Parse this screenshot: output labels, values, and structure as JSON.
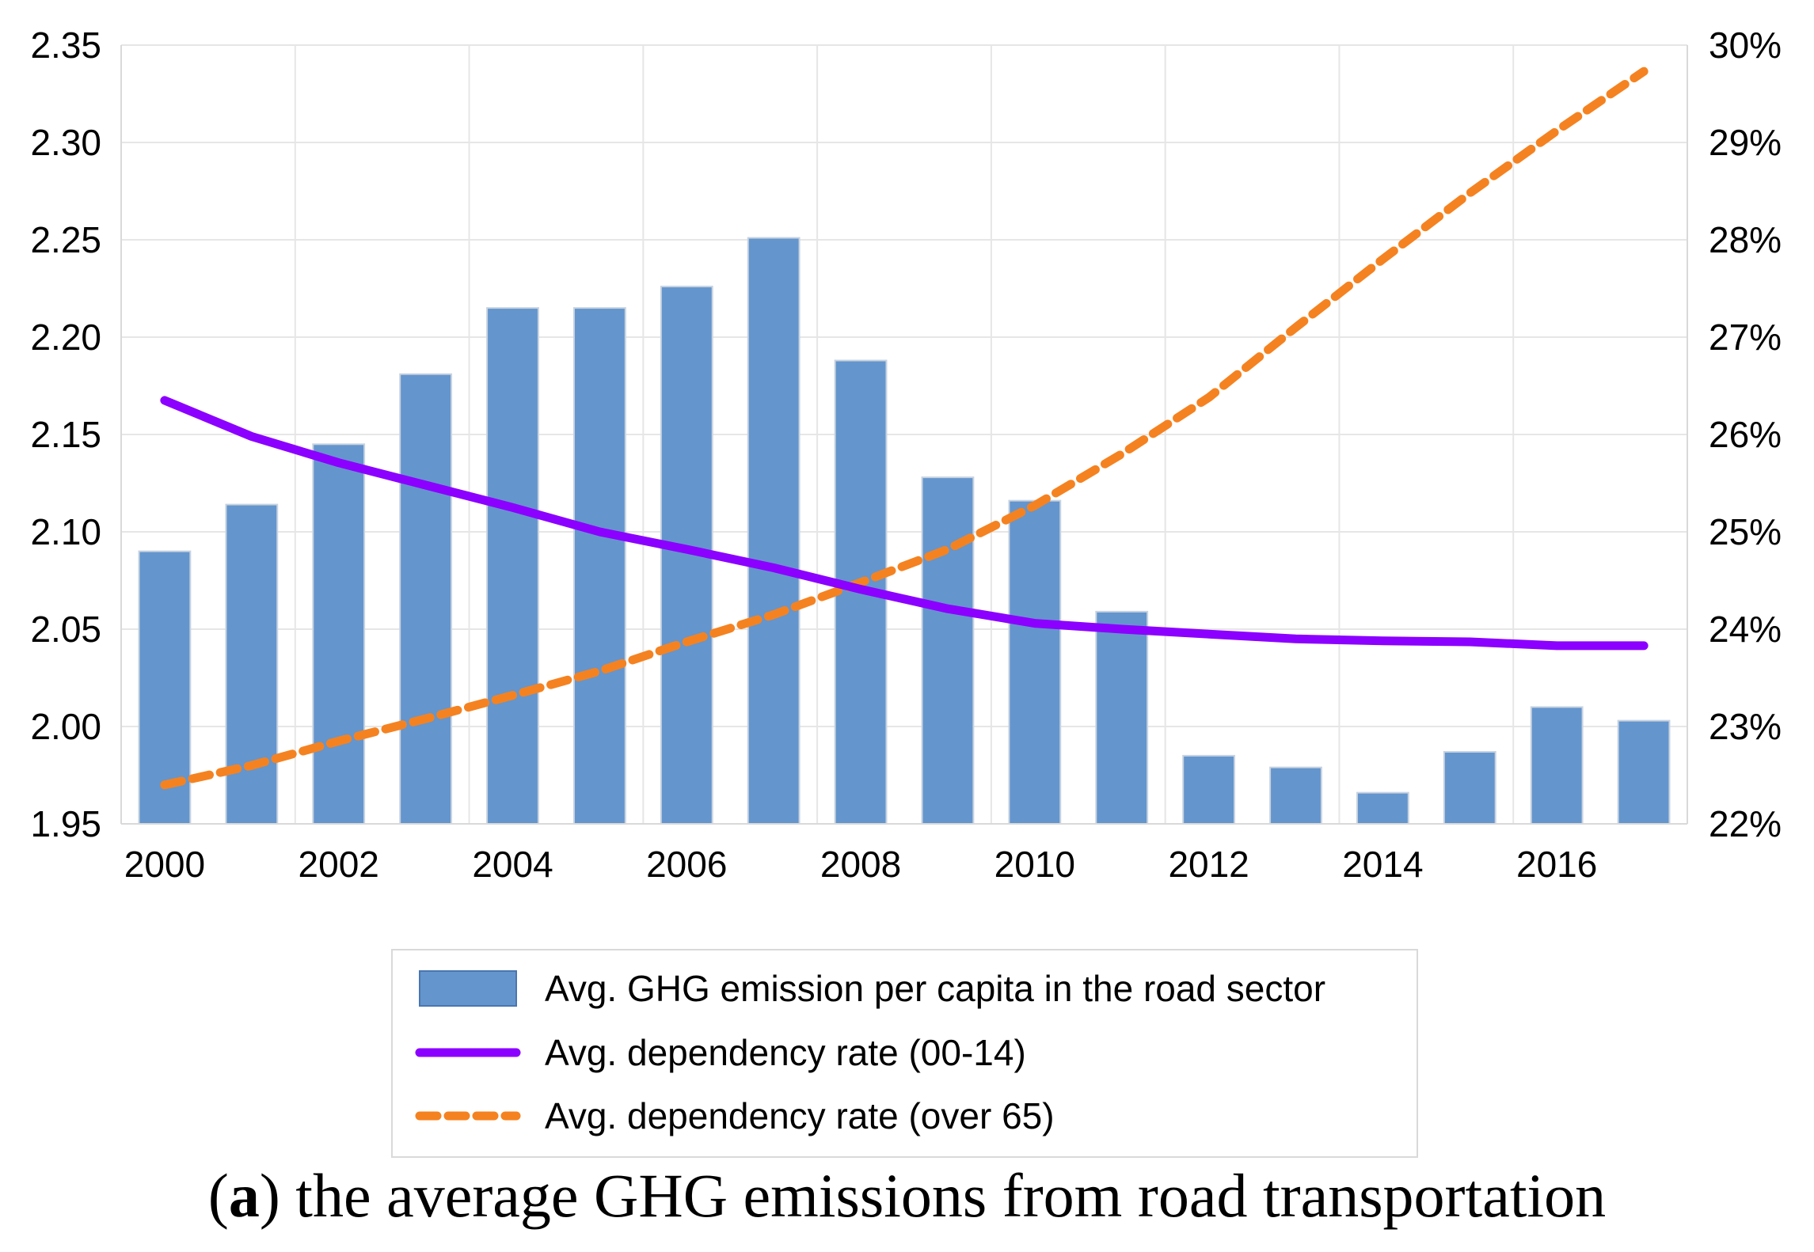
{
  "chart_data": {
    "type": "bar",
    "title": "",
    "xlabel": "",
    "ylabel": "",
    "x": [
      2000,
      2001,
      2002,
      2003,
      2004,
      2005,
      2006,
      2007,
      2008,
      2009,
      2010,
      2011,
      2012,
      2013,
      2014,
      2015,
      2016,
      2017
    ],
    "x_tick_labels": [
      "2000",
      "2002",
      "2004",
      "2006",
      "2008",
      "2010",
      "2012",
      "2014",
      "2016"
    ],
    "x_tick_values": [
      2000,
      2002,
      2004,
      2006,
      2008,
      2010,
      2012,
      2014,
      2016
    ],
    "ylim": [
      1.95,
      2.35
    ],
    "y_tick_labels": [
      "1.95",
      "2.00",
      "2.05",
      "2.10",
      "2.15",
      "2.20",
      "2.25",
      "2.30",
      "2.35"
    ],
    "y_tick_values": [
      1.95,
      2.0,
      2.05,
      2.1,
      2.15,
      2.2,
      2.25,
      2.3,
      2.35
    ],
    "y2lim": [
      22,
      30
    ],
    "y2_tick_labels": [
      "22%",
      "23%",
      "24%",
      "25%",
      "26%",
      "27%",
      "28%",
      "29%",
      "30%"
    ],
    "y2_tick_values": [
      22,
      23,
      24,
      25,
      26,
      27,
      28,
      29,
      30
    ],
    "grid": true,
    "legend_position": "bottom",
    "series": [
      {
        "name": "Avg. GHG emission per capita in the road sector",
        "kind": "bar",
        "axis": "left",
        "color": "#6495CD",
        "values": [
          2.09,
          2.114,
          2.145,
          2.181,
          2.215,
          2.215,
          2.226,
          2.251,
          2.188,
          2.128,
          2.116,
          2.059,
          1.985,
          1.979,
          1.966,
          1.987,
          2.01,
          2.003
        ]
      },
      {
        "name": "Avg. dependency rate (00-14)",
        "kind": "line",
        "axis": "right",
        "color": "#8B00FF",
        "dash": "solid",
        "values": [
          26.35,
          25.98,
          25.71,
          25.48,
          25.25,
          25.0,
          24.82,
          24.63,
          24.41,
          24.21,
          24.06,
          24.0,
          23.95,
          23.9,
          23.88,
          23.87,
          23.83,
          23.83
        ]
      },
      {
        "name": "Avg. dependency rate (over 65)",
        "kind": "line",
        "axis": "right",
        "color": "#F58220",
        "dash": "dashed",
        "values": [
          22.4,
          22.6,
          22.85,
          23.08,
          23.32,
          23.57,
          23.87,
          24.15,
          24.48,
          24.82,
          25.27,
          25.8,
          26.38,
          27.1,
          27.8,
          28.48,
          29.12,
          29.73
        ]
      }
    ]
  },
  "caption": {
    "label": "a",
    "text": " the average GHG emissions from road transportation"
  }
}
